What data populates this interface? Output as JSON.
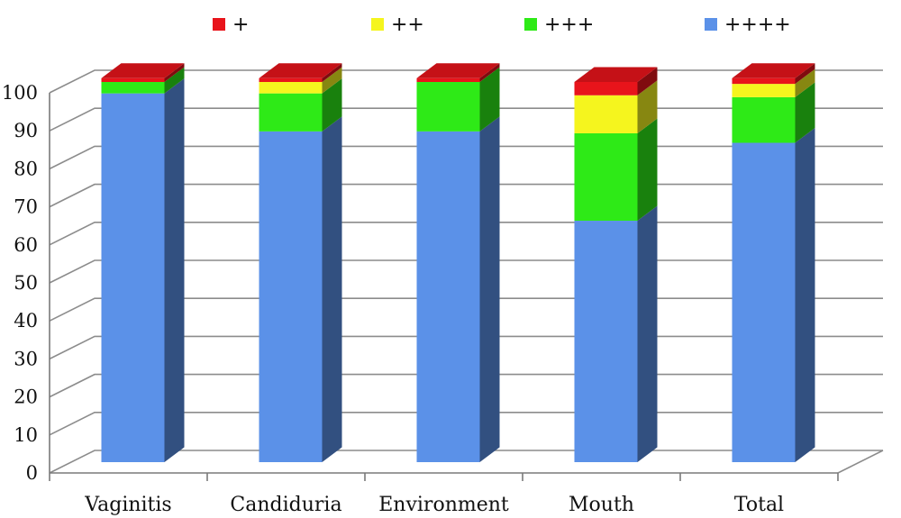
{
  "chart_data": {
    "type": "bar",
    "stacked": true,
    "three_d": true,
    "categories": [
      "Vaginitis",
      "Candiduria",
      "Environment",
      "Mouth",
      "Total"
    ],
    "series": [
      {
        "name": "+",
        "color": "#e8141b",
        "values": [
          1,
          1,
          1,
          3.5,
          1.5
        ]
      },
      {
        "name": "++",
        "color": "#f5f51e",
        "values": [
          0,
          3,
          0,
          10,
          3.5
        ]
      },
      {
        "name": "+++",
        "color": "#2eea17",
        "values": [
          3,
          10,
          13,
          23,
          12
        ]
      },
      {
        "name": "++++",
        "color": "#5b91e8",
        "values": [
          97,
          87,
          87,
          63.5,
          84
        ]
      }
    ],
    "ylim": [
      0,
      100
    ],
    "yticks": [
      "0",
      "10",
      "20",
      "30",
      "40",
      "50",
      "60",
      "70",
      "80",
      "90",
      "100"
    ],
    "grid": true,
    "legend_position": "top"
  }
}
